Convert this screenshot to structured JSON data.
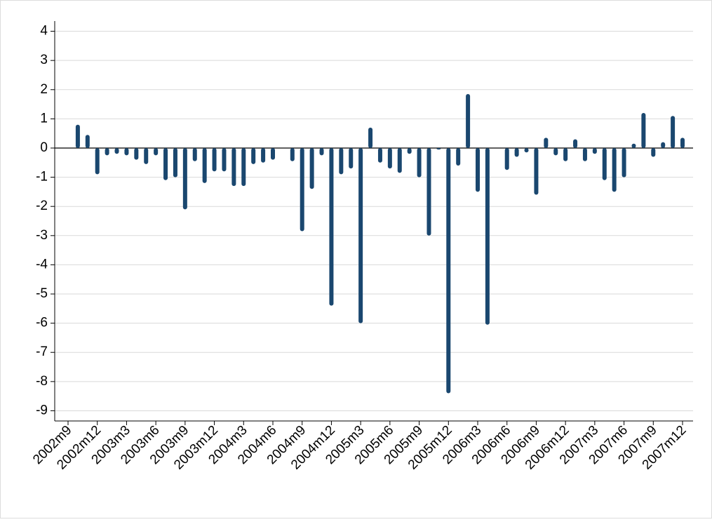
{
  "chart_data": {
    "type": "bar",
    "color": "#1a476f",
    "grid": true,
    "zero_line": true,
    "categories": [
      "2002m9",
      null,
      null,
      "2002m12",
      null,
      null,
      "2003m3",
      null,
      null,
      "2003m6",
      null,
      null,
      "2003m9",
      null,
      null,
      "2003m12",
      null,
      null,
      "2004m3",
      null,
      null,
      "2004m6",
      null,
      null,
      "2004m9",
      null,
      null,
      "2004m12",
      null,
      null,
      "2005m3",
      null,
      null,
      "2005m6",
      null,
      null,
      "2005m9",
      null,
      null,
      "2005m12",
      null,
      null,
      "2006m3",
      null,
      null,
      "2006m6",
      null,
      null,
      "2006m9",
      null,
      null,
      "2006m12",
      null,
      null,
      "2007m3",
      null,
      null,
      "2007m6",
      null,
      null,
      "2007m9",
      null,
      null,
      "2007m12"
    ],
    "values": [
      null,
      0.8,
      0.45,
      -0.9,
      -0.25,
      -0.2,
      -0.25,
      -0.4,
      -0.55,
      -0.25,
      -1.1,
      -1.0,
      -2.1,
      -0.45,
      -1.2,
      -0.8,
      -0.8,
      -1.3,
      -1.3,
      -0.55,
      -0.5,
      -0.4,
      null,
      -0.45,
      -2.85,
      -1.4,
      -0.25,
      -5.4,
      -0.9,
      -0.7,
      -6.0,
      0.7,
      -0.5,
      -0.7,
      -0.85,
      -0.2,
      -1.0,
      -3.0,
      -0.05,
      -8.4,
      -0.6,
      1.85,
      -1.5,
      -6.05,
      null,
      -0.75,
      -0.3,
      -0.15,
      -1.6,
      0.35,
      -0.25,
      -0.45,
      0.3,
      -0.45,
      -0.2,
      -1.1,
      -1.5,
      -1.0,
      0.15,
      1.2,
      -0.3,
      0.2,
      1.1,
      0.35
    ],
    "ylim": [
      -9.35,
      4.35
    ],
    "yticks": [
      -9,
      -8,
      -7,
      -6,
      -5,
      -4,
      -3,
      -2,
      -1,
      0,
      1,
      2,
      3,
      4
    ]
  }
}
